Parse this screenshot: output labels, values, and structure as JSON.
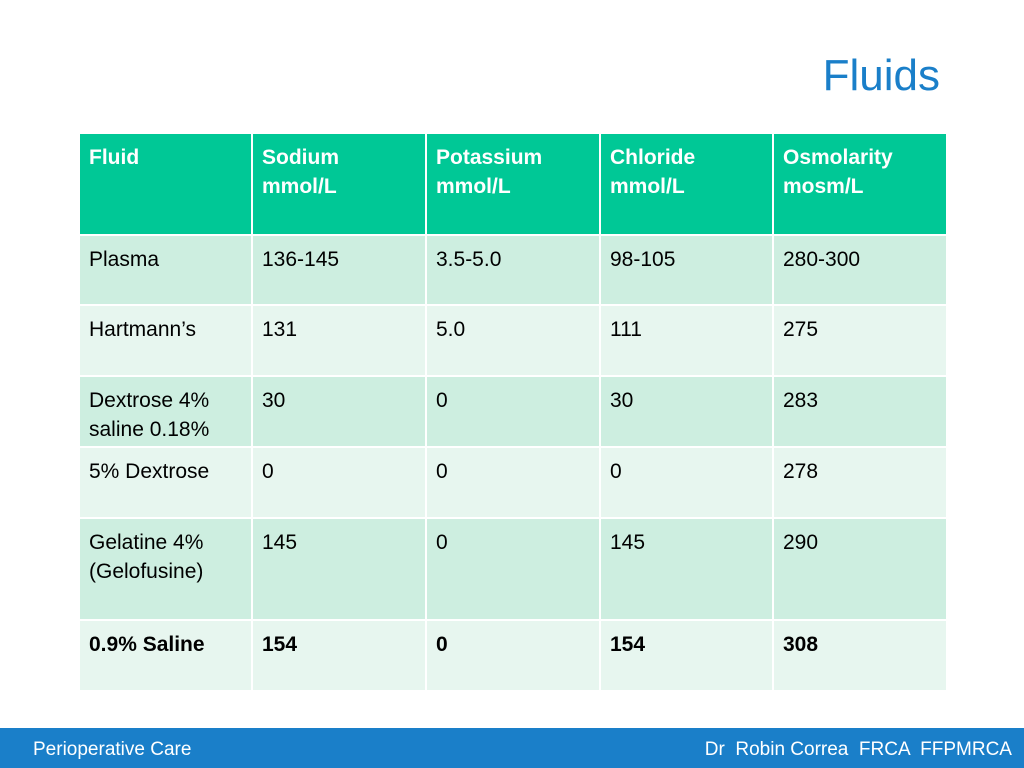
{
  "slide": {
    "title": "Fluids"
  },
  "table": {
    "headers": [
      "Fluid",
      "Sodium mmol/L",
      "Potassium mmol/L",
      "Chloride mmol/L",
      "Osmolarity mosm/L"
    ],
    "rows": [
      [
        "Plasma",
        "136-145",
        "3.5-5.0",
        "98-105",
        "280-300"
      ],
      [
        "Hartmann’s",
        "131",
        "5.0",
        "111",
        "275"
      ],
      [
        "Dextrose 4% saline 0.18%",
        "30",
        "0",
        "30",
        "283"
      ],
      [
        "5% Dextrose",
        "0",
        "0",
        "0",
        "278"
      ],
      [
        "Gelatine 4% (Gelofusine)",
        "145",
        "0",
        "145",
        "290"
      ],
      [
        "0.9% Saline",
        "154",
        "0",
        "154",
        "308"
      ]
    ],
    "header_color": "#00c896",
    "row_colors": [
      "#cdeee0",
      "#e7f6ef"
    ]
  },
  "footer": {
    "left": "Perioperative Care",
    "right": "Dr  Robin Correa  FRCA  FFPMRCA",
    "color": "#1a7fc9"
  }
}
